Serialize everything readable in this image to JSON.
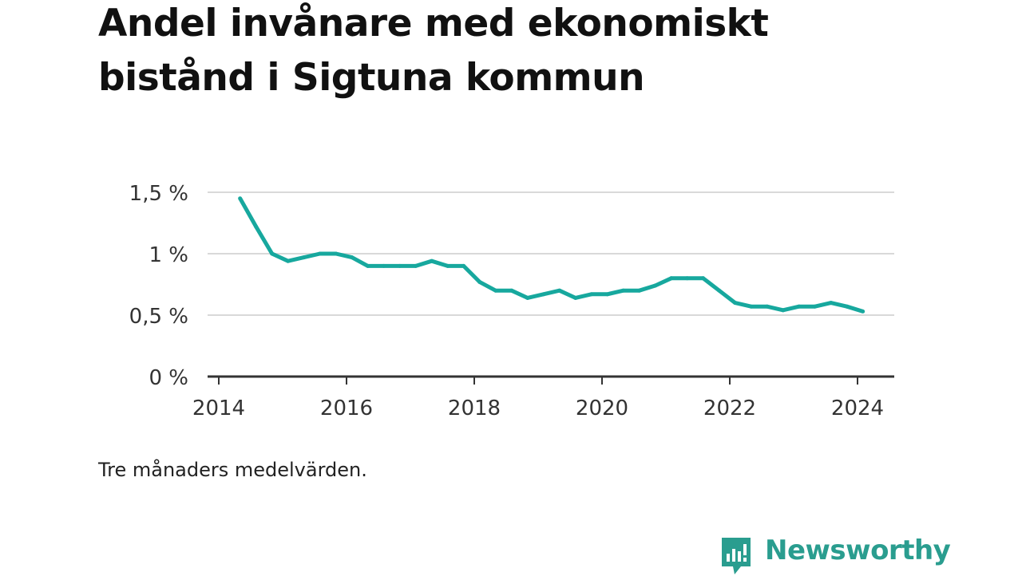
{
  "title": "Andel invånare med ekonomiskt bistånd i Sigtuna kommun",
  "note": "Tre månaders medelvärden.",
  "brand": {
    "name": "Newsworthy",
    "icon": "newsworthy-logo-icon",
    "color": "#2a9d8f"
  },
  "colors": {
    "line": "#17a89e",
    "grid": "#d9d9d9",
    "axis": "#333333"
  },
  "chart_data": {
    "type": "line",
    "x": [
      "2014-05",
      "2014-08",
      "2014-11",
      "2015-02",
      "2015-05",
      "2015-08",
      "2015-11",
      "2016-02",
      "2016-05",
      "2016-08",
      "2016-11",
      "2017-02",
      "2017-05",
      "2017-08",
      "2017-11",
      "2018-02",
      "2018-05",
      "2018-08",
      "2018-11",
      "2019-02",
      "2019-05",
      "2019-08",
      "2019-11",
      "2020-02",
      "2020-05",
      "2020-08",
      "2020-11",
      "2021-02",
      "2021-05",
      "2021-08",
      "2021-11",
      "2022-02",
      "2022-05",
      "2022-08",
      "2022-11",
      "2023-02",
      "2023-05",
      "2023-08",
      "2023-11",
      "2024-02"
    ],
    "values": [
      1.45,
      1.22,
      1.0,
      0.94,
      0.97,
      1.0,
      1.0,
      0.97,
      0.9,
      0.9,
      0.9,
      0.9,
      0.94,
      0.9,
      0.9,
      0.77,
      0.7,
      0.7,
      0.64,
      0.67,
      0.7,
      0.64,
      0.67,
      0.67,
      0.7,
      0.7,
      0.74,
      0.8,
      0.8,
      0.8,
      0.7,
      0.6,
      0.57,
      0.57,
      0.54,
      0.57,
      0.57,
      0.6,
      0.57,
      0.53
    ],
    "ylim": [
      0,
      1.5
    ],
    "yticks": [
      0,
      0.5,
      1,
      1.5
    ],
    "ytick_labels": [
      "0 %",
      "0,5 %",
      "1 %",
      "1,5 %"
    ],
    "xticks": [
      "2014",
      "2016",
      "2018",
      "2020",
      "2022",
      "2024"
    ],
    "grid": true,
    "xlabel": "",
    "ylabel": ""
  }
}
